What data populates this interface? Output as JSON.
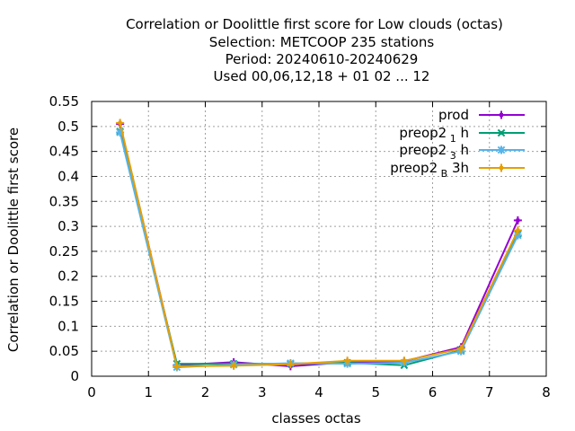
{
  "chart_data": {
    "type": "line",
    "title_lines": [
      "Correlation or Doolittle first score  for Low clouds (octas)",
      "Selection: METCOOP    235 stations",
      "Period: 20240610-20240629",
      "Used  00,06,12,18 + 01 02 ... 12"
    ],
    "xlabel": "classes octas",
    "ylabel": "Correlation or Doolittle first score",
    "xlim": [
      0,
      8
    ],
    "ylim": [
      0,
      0.55
    ],
    "xticks": [
      "0",
      "1",
      "2",
      "3",
      "4",
      "5",
      "6",
      "7",
      "8"
    ],
    "yticks": [
      "0",
      "0.05",
      "0.1",
      "0.15",
      "0.2",
      "0.25",
      "0.3",
      "0.35",
      "0.4",
      "0.45",
      "0.5",
      "0.55"
    ],
    "grid": true,
    "legend_position": "top-right",
    "x": [
      0.5,
      1.5,
      2.5,
      3.5,
      4.5,
      5.5,
      6.5,
      7.5
    ],
    "series": [
      {
        "name_main": "prod",
        "name_sub": "",
        "name_tail": "",
        "color": "#9400d3",
        "marker": "plus",
        "values": [
          0.505,
          0.022,
          0.028,
          0.02,
          0.028,
          0.03,
          0.058,
          0.312
        ]
      },
      {
        "name_main": "preop2",
        "name_sub": "1",
        "name_tail": "h",
        "color": "#009e73",
        "marker": "cross",
        "values": [
          0.49,
          0.025,
          0.025,
          0.025,
          0.027,
          0.022,
          0.052,
          0.285
        ]
      },
      {
        "name_main": "preop2",
        "name_sub": "3",
        "name_tail": "h",
        "color": "#56b4e9",
        "marker": "star",
        "values": [
          0.488,
          0.018,
          0.023,
          0.026,
          0.025,
          0.027,
          0.05,
          0.282
        ]
      },
      {
        "name_main": "preop2",
        "name_sub": "B",
        "name_tail": "3h",
        "color": "#e69f00",
        "marker": "plus",
        "values": [
          0.507,
          0.02,
          0.021,
          0.024,
          0.031,
          0.031,
          0.055,
          0.292
        ]
      }
    ]
  }
}
